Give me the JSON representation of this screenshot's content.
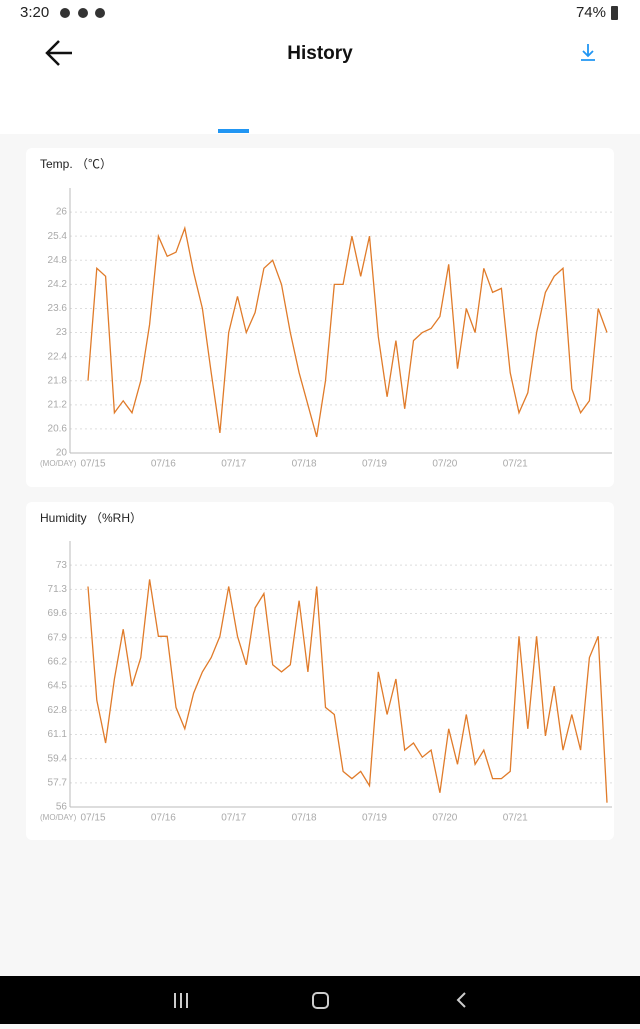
{
  "status_bar": {
    "time": "3:20",
    "battery": "74%"
  },
  "header": {
    "title": "History"
  },
  "chart_data": [
    {
      "type": "line",
      "title": "Temp. （℃）",
      "x_unit": "(MO/DAY)",
      "color": "#e07b2a",
      "grid": true,
      "categories": [
        "07/15",
        null,
        null,
        null,
        null,
        null,
        null,
        null,
        "07/16",
        null,
        null,
        null,
        null,
        null,
        null,
        null,
        "07/17",
        null,
        null,
        null,
        null,
        null,
        null,
        null,
        "07/18",
        null,
        null,
        null,
        null,
        null,
        null,
        null,
        "07/19",
        null,
        null,
        null,
        null,
        null,
        null,
        null,
        "07/20",
        null,
        null,
        null,
        null,
        null,
        null,
        null,
        "07/21",
        null,
        null,
        null,
        null,
        null,
        null,
        null,
        null,
        null,
        null,
        null
      ],
      "values": [
        21.8,
        24.6,
        24.4,
        21.0,
        21.3,
        21.0,
        21.8,
        23.2,
        25.4,
        24.9,
        25.0,
        25.6,
        24.5,
        23.6,
        22.0,
        20.5,
        23.0,
        23.9,
        23.0,
        23.5,
        24.6,
        24.8,
        24.2,
        23.0,
        22.0,
        21.2,
        20.4,
        21.8,
        24.2,
        24.2,
        25.4,
        24.4,
        25.4,
        22.9,
        21.4,
        22.8,
        21.1,
        22.8,
        23.0,
        23.1,
        23.4,
        24.7,
        22.1,
        23.6,
        23.0,
        24.6,
        24.0,
        24.1,
        22.0,
        21.0,
        21.5,
        23.0,
        24.0,
        24.4,
        24.6,
        21.6,
        21.0,
        21.3,
        23.6,
        23.0
      ],
      "ylim": [
        20,
        26.6
      ],
      "yticks": [
        20,
        20.6,
        21.2,
        21.8,
        22.4,
        23,
        23.6,
        24.2,
        24.8,
        25.4,
        26
      ]
    },
    {
      "type": "line",
      "title": "Humidity （%RH）",
      "x_unit": "(MO/DAY)",
      "color": "#e07b2a",
      "grid": true,
      "categories": [
        "07/15",
        null,
        null,
        null,
        null,
        null,
        null,
        null,
        "07/16",
        null,
        null,
        null,
        null,
        null,
        null,
        null,
        "07/17",
        null,
        null,
        null,
        null,
        null,
        null,
        null,
        "07/18",
        null,
        null,
        null,
        null,
        null,
        null,
        null,
        "07/19",
        null,
        null,
        null,
        null,
        null,
        null,
        null,
        "07/20",
        null,
        null,
        null,
        null,
        null,
        null,
        null,
        "07/21",
        null,
        null,
        null,
        null,
        null,
        null,
        null,
        null,
        null,
        null,
        null
      ],
      "values": [
        71.5,
        63.5,
        60.5,
        65.0,
        68.5,
        64.5,
        66.5,
        72.0,
        68.0,
        68.0,
        63.0,
        61.5,
        64.0,
        65.5,
        66.5,
        68.0,
        71.5,
        68.0,
        66.0,
        70.0,
        71.0,
        66.0,
        65.5,
        66.0,
        70.5,
        65.5,
        71.5,
        63.0,
        62.5,
        58.5,
        58.0,
        58.5,
        57.5,
        65.5,
        62.5,
        65.0,
        60.0,
        60.5,
        59.5,
        60.0,
        57.0,
        61.5,
        59.0,
        62.5,
        59.0,
        60.0,
        58.0,
        58.0,
        58.5,
        68.0,
        61.5,
        68.0,
        61.0,
        64.5,
        60.0,
        62.5,
        60.0,
        66.5,
        68.0,
        56.3
      ],
      "ylim": [
        56,
        74.7
      ],
      "yticks": [
        56,
        57.7,
        59.4,
        61.1,
        62.8,
        64.5,
        66.2,
        67.9,
        69.6,
        71.3,
        73
      ]
    }
  ]
}
